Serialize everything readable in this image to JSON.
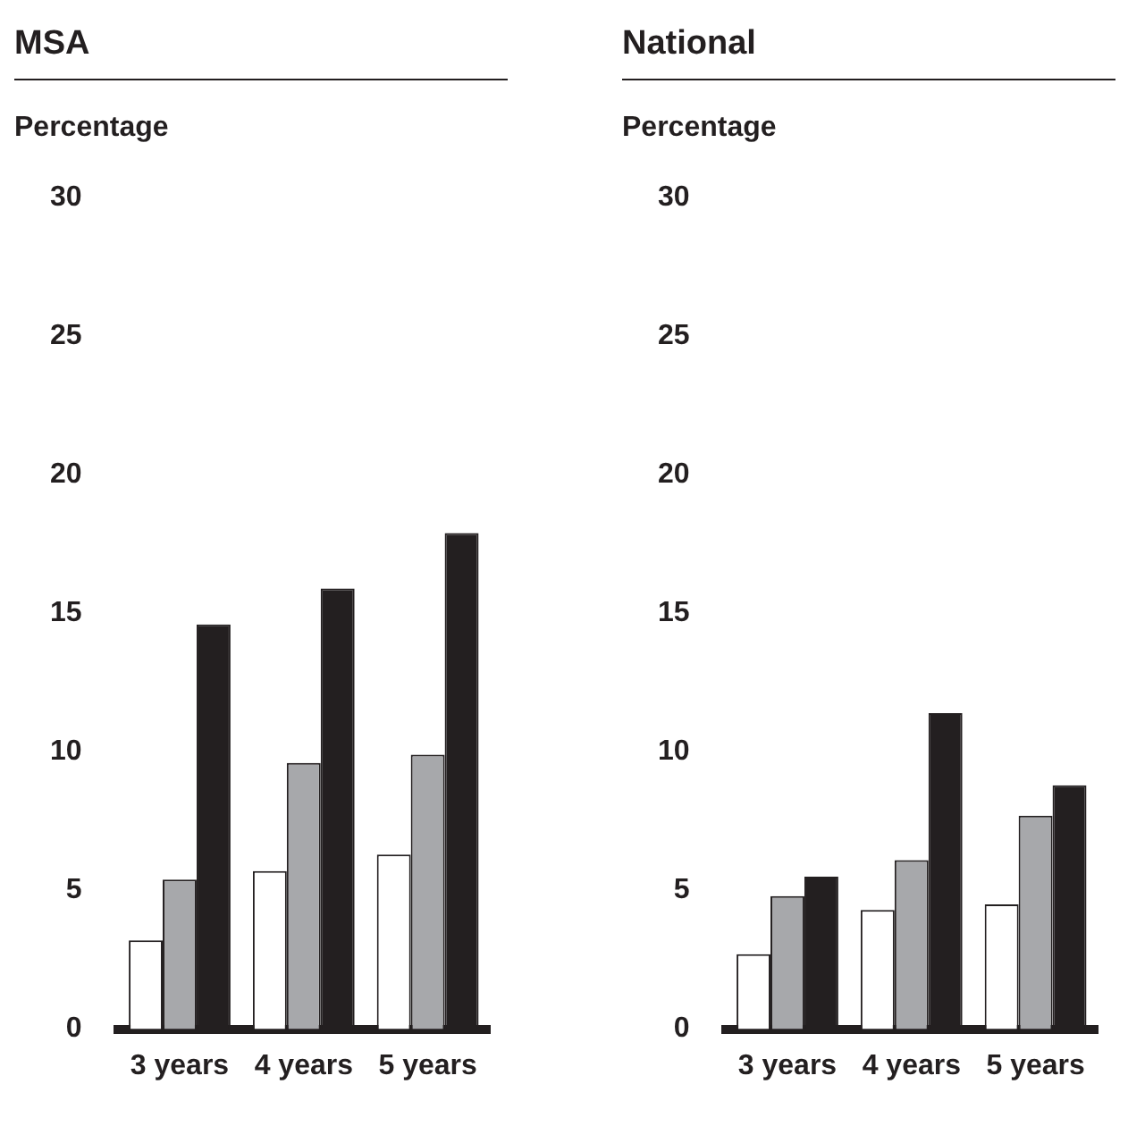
{
  "chart_data": [
    {
      "type": "bar",
      "title": "MSA",
      "ylabel": "Percentage",
      "categories": [
        "3 years",
        "4 years",
        "5 years"
      ],
      "ylim": [
        0,
        30
      ],
      "yticks": [
        0,
        5,
        10,
        15,
        20,
        25,
        30
      ],
      "series": [
        {
          "color": "#ffffff",
          "values": [
            3.2,
            5.7,
            6.3
          ]
        },
        {
          "color": "#a7a8ab",
          "values": [
            5.4,
            9.6,
            9.9
          ]
        },
        {
          "color": "#231f20",
          "values": [
            14.6,
            15.9,
            17.9
          ]
        }
      ]
    },
    {
      "type": "bar",
      "title": "National",
      "ylabel": "Percentage",
      "categories": [
        "3 years",
        "4 years",
        "5 years"
      ],
      "ylim": [
        0,
        30
      ],
      "yticks": [
        0,
        5,
        10,
        15,
        20,
        25,
        30
      ],
      "series": [
        {
          "color": "#ffffff",
          "values": [
            2.7,
            4.3,
            4.5
          ]
        },
        {
          "color": "#a7a8ab",
          "values": [
            4.8,
            6.1,
            7.7
          ]
        },
        {
          "color": "#231f20",
          "values": [
            5.5,
            11.4,
            8.8
          ]
        }
      ]
    }
  ]
}
